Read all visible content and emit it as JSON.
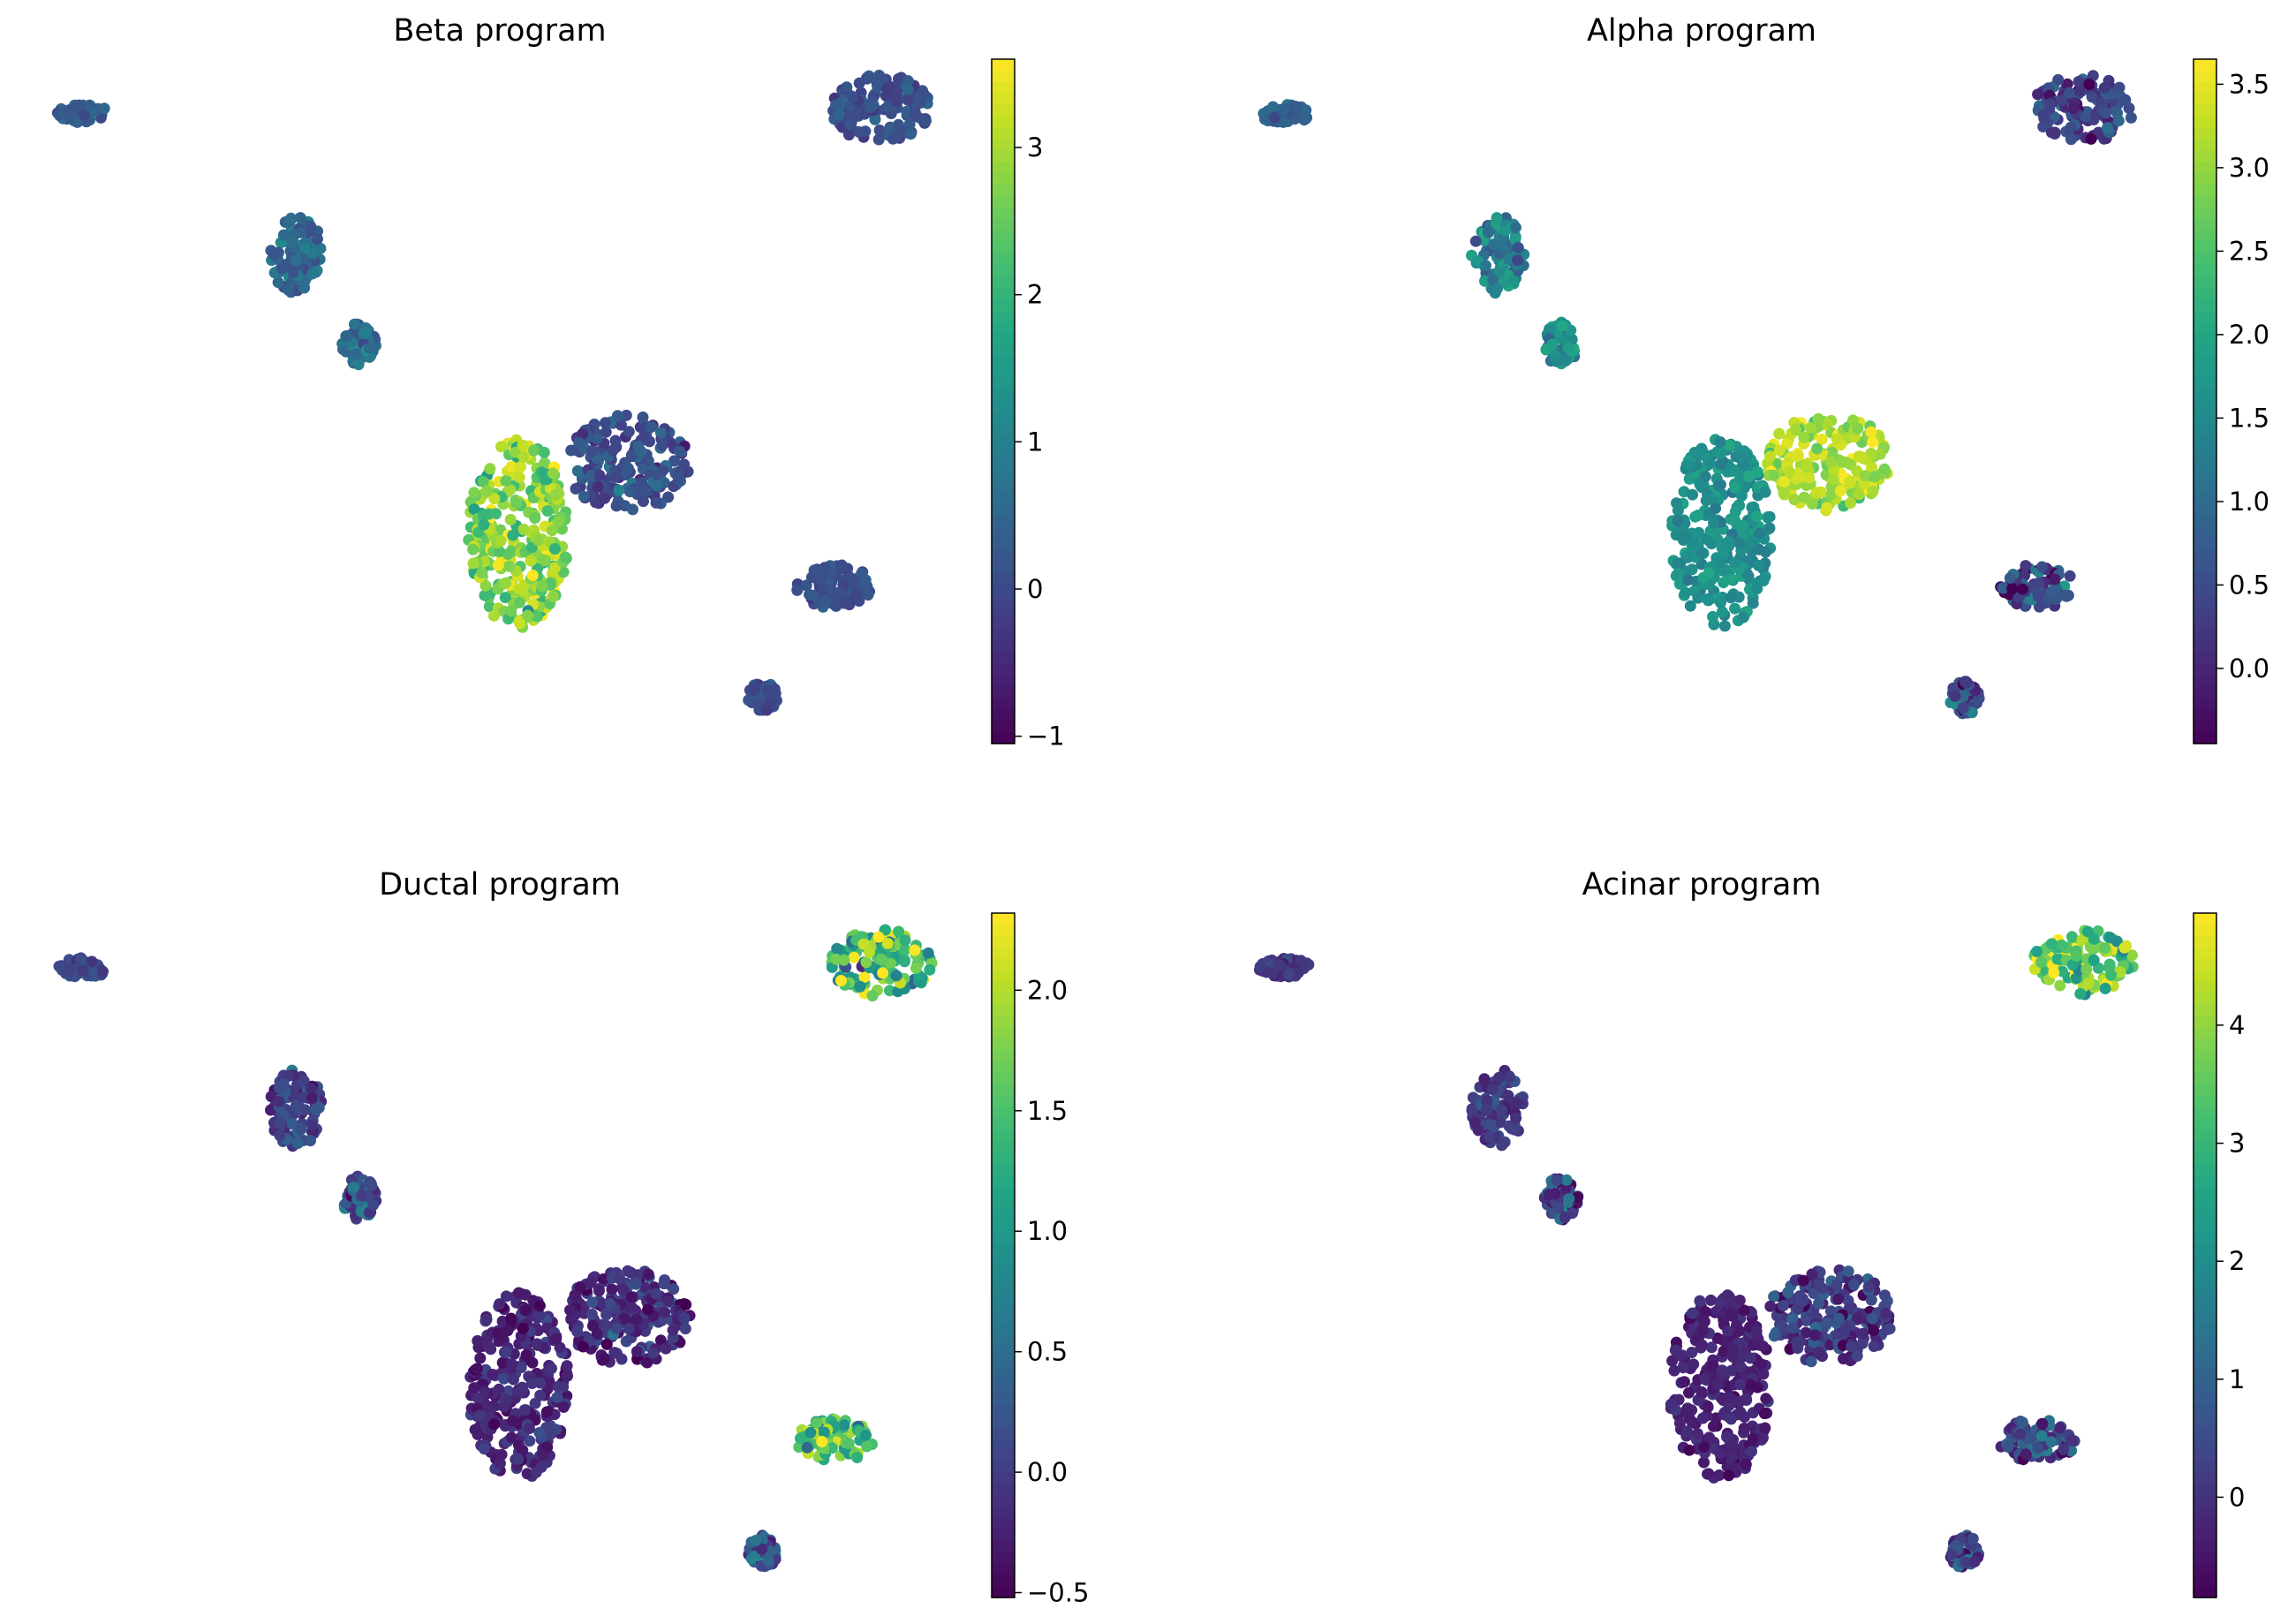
{
  "chart_data": [
    {
      "type": "scatter",
      "title": "Beta program",
      "xlabel": "",
      "ylabel": "",
      "colormap": "viridis",
      "color_range": [
        -1.05,
        3.6
      ],
      "colorbar_ticks": [
        "−1",
        "0",
        "1",
        "2",
        "3"
      ],
      "colorbar_tick_values": [
        -1,
        0,
        1,
        2,
        3
      ],
      "clusters": [
        {
          "x": [
            0.5,
            1.5
          ],
          "y": [
            9.3,
            9.0
          ],
          "value": 0.3,
          "spread": 0.15
        },
        {
          "x": [
            4.9,
            5.9
          ],
          "y": [
            7.0,
            5.5
          ],
          "value": 0.5,
          "spread": 0.3
        },
        {
          "x": [
            6.4,
            7.0
          ],
          "y": [
            4.8,
            4.0
          ],
          "value": 0.6,
          "spread": 0.3
        },
        {
          "x": [
            11.0,
            13.5
          ],
          "y": [
            1.0,
            2.9
          ],
          "value": 0.05,
          "spread": 0.3
        },
        {
          "x": [
            9.0,
            11.0
          ],
          "y": [
            2.4,
            -1.4
          ],
          "value": 2.7,
          "spread": 0.5
        },
        {
          "x": [
            16.5,
            18.5
          ],
          "y": [
            9.9,
            8.6
          ],
          "value": 0.1,
          "spread": 0.2
        },
        {
          "x": [
            15.8,
            17.3
          ],
          "y": [
            -0.2,
            -1.0
          ],
          "value": 0.05,
          "spread": 0.15
        },
        {
          "x": [
            14.8,
            15.3
          ],
          "y": [
            -2.6,
            -3.2
          ],
          "value": 0.1,
          "spread": 0.15
        }
      ]
    },
    {
      "type": "scatter",
      "title": "Alpha program",
      "xlabel": "",
      "ylabel": "",
      "colormap": "viridis",
      "color_range": [
        -0.45,
        3.65
      ],
      "colorbar_ticks": [
        "0.0",
        "0.5",
        "1.0",
        "1.5",
        "2.0",
        "2.5",
        "3.0",
        "3.5"
      ],
      "colorbar_tick_values": [
        0.0,
        0.5,
        1.0,
        1.5,
        2.0,
        2.5,
        3.0,
        3.5
      ],
      "clusters": [
        {
          "x": [
            0.5,
            1.5
          ],
          "y": [
            9.3,
            9.0
          ],
          "value": 0.9,
          "spread": 0.15
        },
        {
          "x": [
            4.9,
            5.9
          ],
          "y": [
            7.0,
            5.5
          ],
          "value": 1.3,
          "spread": 0.4
        },
        {
          "x": [
            6.4,
            7.0
          ],
          "y": [
            4.8,
            4.0
          ],
          "value": 1.6,
          "spread": 0.3
        },
        {
          "x": [
            11.0,
            13.5
          ],
          "y": [
            1.0,
            2.9
          ],
          "value": 3.1,
          "spread": 0.3
        },
        {
          "x": [
            9.0,
            11.0
          ],
          "y": [
            2.4,
            -1.4
          ],
          "value": 1.6,
          "spread": 0.2
        },
        {
          "x": [
            16.5,
            18.5
          ],
          "y": [
            9.9,
            8.6
          ],
          "value": 0.4,
          "spread": 0.4
        },
        {
          "x": [
            15.8,
            17.3
          ],
          "y": [
            -0.2,
            -1.0
          ],
          "value": 0.5,
          "spread": 0.6
        },
        {
          "x": [
            14.8,
            15.3
          ],
          "y": [
            -2.6,
            -3.2
          ],
          "value": 0.6,
          "spread": 0.5
        }
      ]
    },
    {
      "type": "scatter",
      "title": "Ductal program",
      "xlabel": "",
      "ylabel": "",
      "colormap": "viridis",
      "color_range": [
        -0.52,
        2.32
      ],
      "colorbar_ticks": [
        "−0.5",
        "0.0",
        "0.5",
        "1.0",
        "1.5",
        "2.0"
      ],
      "colorbar_tick_values": [
        -0.5,
        0.0,
        0.5,
        1.0,
        1.5,
        2.0
      ],
      "clusters": [
        {
          "x": [
            0.5,
            1.5
          ],
          "y": [
            9.3,
            9.0
          ],
          "value": 0.1,
          "spread": 0.1
        },
        {
          "x": [
            4.9,
            5.9
          ],
          "y": [
            7.0,
            5.5
          ],
          "value": 0.05,
          "spread": 0.2
        },
        {
          "x": [
            6.4,
            7.0
          ],
          "y": [
            4.8,
            4.0
          ],
          "value": 0.2,
          "spread": 0.3
        },
        {
          "x": [
            11.0,
            13.5
          ],
          "y": [
            1.0,
            2.9
          ],
          "value": -0.15,
          "spread": 0.2
        },
        {
          "x": [
            9.0,
            11.0
          ],
          "y": [
            2.4,
            -1.4
          ],
          "value": -0.2,
          "spread": 0.15
        },
        {
          "x": [
            16.5,
            18.5
          ],
          "y": [
            9.9,
            8.6
          ],
          "value": 1.4,
          "spread": 0.5
        },
        {
          "x": [
            15.8,
            17.3
          ],
          "y": [
            -0.2,
            -1.0
          ],
          "value": 1.5,
          "spread": 0.4
        },
        {
          "x": [
            14.8,
            15.3
          ],
          "y": [
            -2.6,
            -3.2
          ],
          "value": 0.2,
          "spread": 0.3
        }
      ]
    },
    {
      "type": "scatter",
      "title": "Acinar program",
      "xlabel": "",
      "ylabel": "",
      "colormap": "viridis",
      "color_range": [
        -0.85,
        4.95
      ],
      "colorbar_ticks": [
        "0",
        "1",
        "2",
        "3",
        "4"
      ],
      "colorbar_tick_values": [
        0,
        1,
        2,
        3,
        4
      ],
      "clusters": [
        {
          "x": [
            0.5,
            1.5
          ],
          "y": [
            9.3,
            9.0
          ],
          "value": 0.0,
          "spread": 0.2
        },
        {
          "x": [
            4.9,
            5.9
          ],
          "y": [
            7.0,
            5.5
          ],
          "value": 0.2,
          "spread": 0.3
        },
        {
          "x": [
            6.4,
            7.0
          ],
          "y": [
            4.8,
            4.0
          ],
          "value": 0.3,
          "spread": 0.6
        },
        {
          "x": [
            11.0,
            13.5
          ],
          "y": [
            1.0,
            2.9
          ],
          "value": 0.1,
          "spread": 0.5
        },
        {
          "x": [
            9.0,
            11.0
          ],
          "y": [
            2.4,
            -1.4
          ],
          "value": -0.3,
          "spread": 0.2
        },
        {
          "x": [
            16.5,
            18.5
          ],
          "y": [
            9.9,
            8.6
          ],
          "value": 3.6,
          "spread": 0.8
        },
        {
          "x": [
            15.8,
            17.3
          ],
          "y": [
            -0.2,
            -1.0
          ],
          "value": 0.5,
          "spread": 0.6
        },
        {
          "x": [
            14.8,
            15.3
          ],
          "y": [
            -2.6,
            -3.2
          ],
          "value": 0.4,
          "spread": 0.6
        }
      ]
    }
  ]
}
